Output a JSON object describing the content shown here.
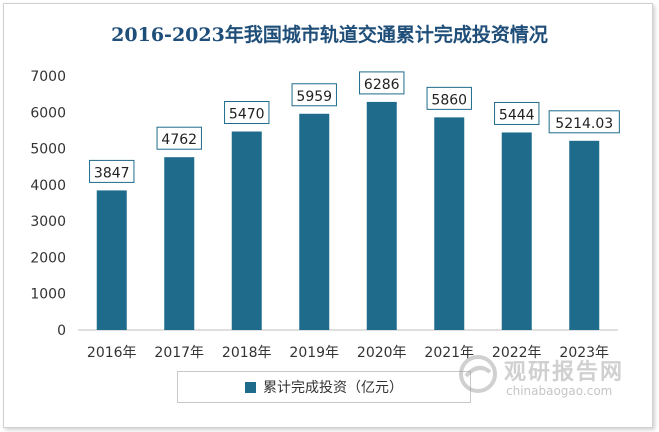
{
  "chart_data": {
    "type": "bar",
    "title": "2016-2023年我国城市轨道交通累计完成投资情况",
    "categories": [
      "2016年",
      "2017年",
      "2018年",
      "2019年",
      "2020年",
      "2021年",
      "2022年",
      "2023年"
    ],
    "series": [
      {
        "name": "累计完成投资（亿元）",
        "values": [
          3847,
          4762,
          5470,
          5959,
          6286,
          5860,
          5444,
          5214.03
        ],
        "labels": [
          "3847",
          "4762",
          "5470",
          "5959",
          "6286",
          "5860",
          "5444",
          "5214.03"
        ]
      }
    ],
    "ylim": [
      0,
      7000
    ],
    "yticks": [
      0,
      1000,
      2000,
      3000,
      4000,
      5000,
      6000,
      7000
    ],
    "grid": false,
    "legend_position": "bottom",
    "bar_color": "#1e6b8c"
  },
  "watermark": {
    "name": "观研报告网",
    "url": "chinabaogao.com"
  }
}
